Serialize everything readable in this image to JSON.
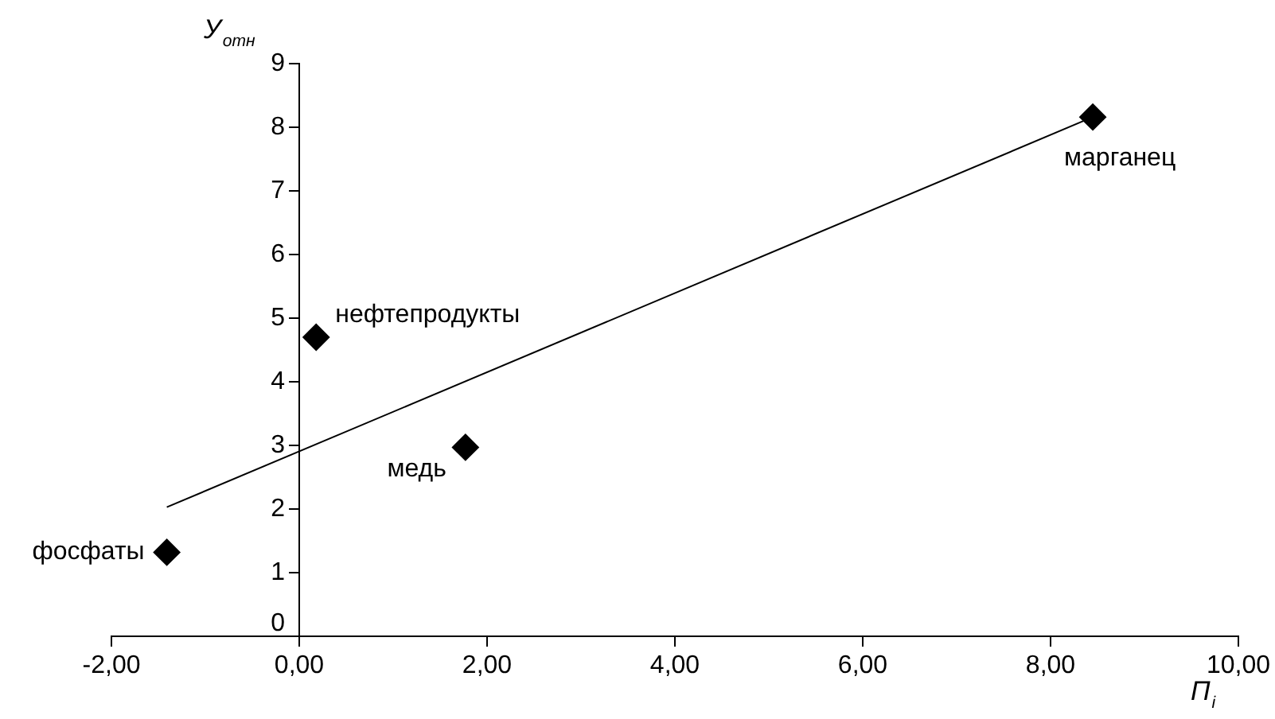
{
  "chart_data": {
    "type": "scatter",
    "xlabel": "П$_{i}$",
    "ylabel": "У$_{отн}$",
    "x": [
      -1.41,
      0.18,
      1.77,
      8.45
    ],
    "series": [
      {
        "color": "#000000",
        "marker": "diamond",
        "values": [
          1.32,
          4.7,
          2.97,
          8.16
        ]
      },
      {
        "type": "line",
        "color": "#000000",
        "marker": "none",
        "x": [
          -1.41,
          8.45
        ],
        "values": [
          2.03,
          8.16
        ]
      }
    ],
    "annotations": [
      {
        "text": "фосфаты",
        "x": -1.41,
        "y": 1.32
      },
      {
        "text": "нефтепродукты",
        "x": 0.18,
        "y": 4.7
      },
      {
        "text": "медь",
        "x": 1.77,
        "y": 2.97
      },
      {
        "text": "марганец",
        "x": 8.45,
        "y": 8.16
      }
    ],
    "xlim": [
      -2,
      10
    ],
    "xticks": [
      {
        "value": -2,
        "label": "-2,00"
      },
      {
        "value": 0,
        "label": "0,00"
      },
      {
        "value": 2,
        "label": "2,00"
      },
      {
        "value": 4,
        "label": "4,00"
      },
      {
        "value": 6,
        "label": "6,00"
      },
      {
        "value": 8,
        "label": "8,00"
      },
      {
        "value": 10,
        "label": "10,00"
      }
    ],
    "ylim": [
      0,
      9
    ],
    "yticks": [
      0,
      1,
      2,
      3,
      4,
      5,
      6,
      7,
      8,
      9
    ],
    "grid": false,
    "legend": false
  }
}
